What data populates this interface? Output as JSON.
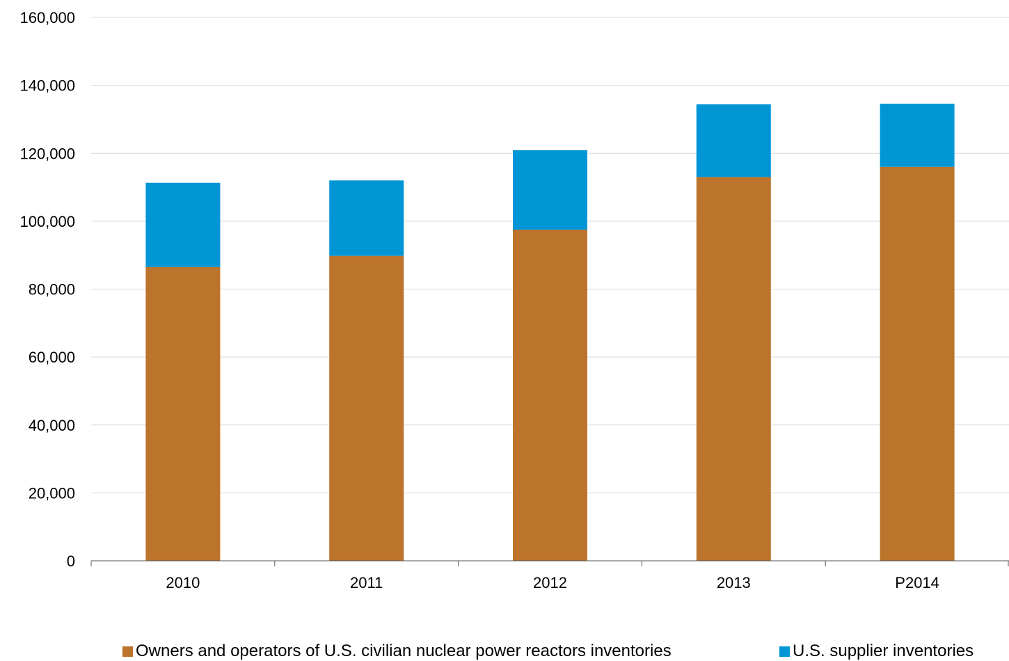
{
  "chart_data": {
    "type": "bar",
    "stacked": true,
    "title": "",
    "xlabel": "",
    "ylabel": "",
    "categories": [
      "2010",
      "2011",
      "2012",
      "2013",
      "P2014"
    ],
    "series": [
      {
        "name": "Owners and operators of U.S. civilian nuclear power reactors inventories",
        "color": "#BC732B",
        "values": [
          86500,
          89800,
          97500,
          113000,
          116000
        ]
      },
      {
        "name": "U.S. supplier inventories",
        "color": "#0096D6",
        "values": [
          24800,
          22200,
          23400,
          21400,
          18600
        ]
      }
    ],
    "ylim": [
      0,
      160000
    ],
    "yticks": [
      "0",
      "20,000",
      "40,000",
      "60,000",
      "80,000",
      "100,000",
      "120,000",
      "140,000",
      "160,000"
    ],
    "grid": true,
    "gridColor": "#D9D9D9",
    "axisColor": "#555555",
    "legend": "bottom"
  }
}
